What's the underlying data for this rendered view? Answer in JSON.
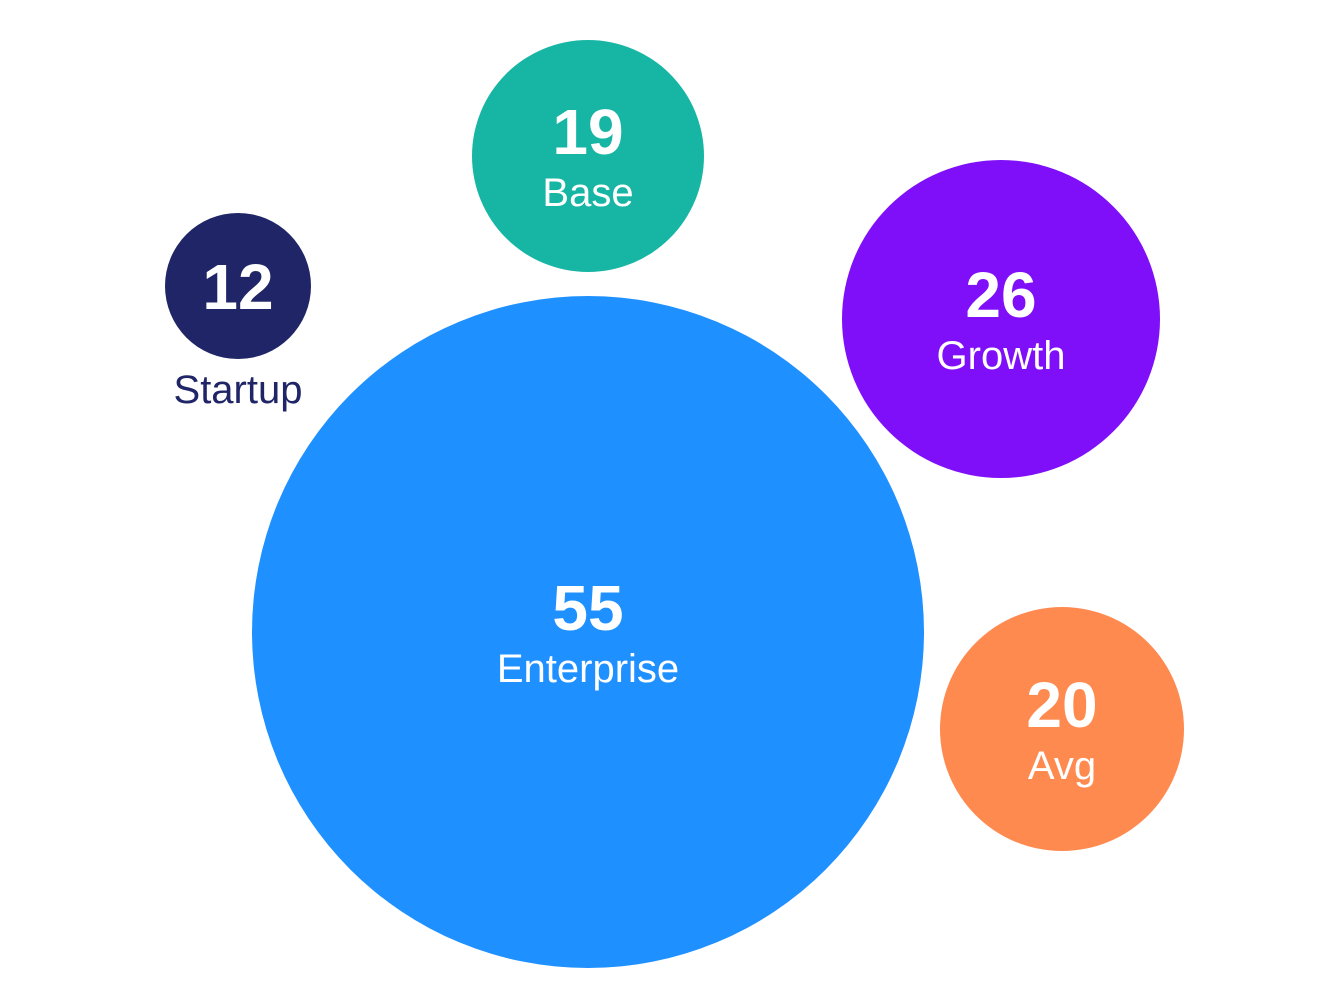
{
  "chart_data": {
    "type": "bubble",
    "title": "",
    "bubbles": [
      {
        "label": "Startup",
        "value": 12,
        "color": "#1f2566"
      },
      {
        "label": "Base",
        "value": 19,
        "color": "#17b6a4"
      },
      {
        "label": "Growth",
        "value": 26,
        "color": "#7f0ff8"
      },
      {
        "label": "Enterprise",
        "value": 55,
        "color": "#1e90ff"
      },
      {
        "label": "Avg",
        "value": 20,
        "color": "#ff8a4f"
      }
    ]
  }
}
